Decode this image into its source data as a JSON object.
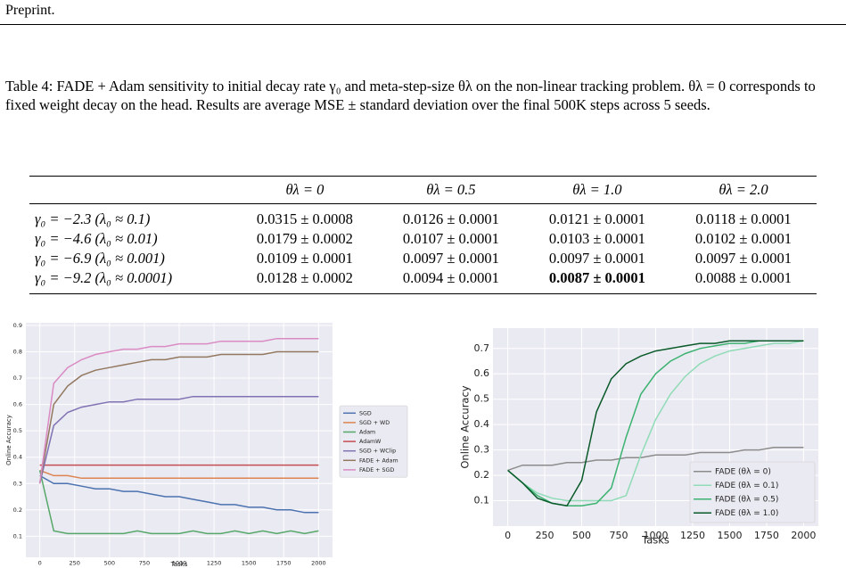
{
  "header": {
    "title": "Preprint."
  },
  "caption": "Table 4: FADE + Adam sensitivity to initial decay rate γ₀ and meta-step-size θλ on the non-linear tracking problem. θλ = 0 corresponds to fixed weight decay on the head. Results are average MSE ± standard deviation over the final 500K steps across 5 seeds.",
  "table": {
    "columns": [
      "θλ = 0",
      "θλ = 0.5",
      "θλ = 1.0",
      "θλ = 2.0"
    ],
    "rows": [
      {
        "label": "γ₀ = −2.3 (λ₀ ≈ 0.1)",
        "cells": [
          "0.0315 ± 0.0008",
          "0.0126 ± 0.0001",
          "0.0121 ± 0.0001",
          "0.0118 ± 0.0001"
        ]
      },
      {
        "label": "γ₀ = −4.6 (λ₀ ≈ 0.01)",
        "cells": [
          "0.0179 ± 0.0002",
          "0.0107 ± 0.0001",
          "0.0103 ± 0.0001",
          "0.0102 ± 0.0001"
        ]
      },
      {
        "label": "γ₀ = −6.9 (λ₀ ≈ 0.001)",
        "cells": [
          "0.0109 ± 0.0001",
          "0.0097 ± 0.0001",
          "0.0097 ± 0.0001",
          "0.0097 ± 0.0001"
        ]
      },
      {
        "label": "γ₀ = −9.2 (λ₀ ≈ 0.0001)",
        "cells": [
          "0.0128 ± 0.0002",
          "0.0094 ± 0.0001",
          "0.0087 ± 0.0001",
          "0.0088 ± 0.0001"
        ]
      }
    ],
    "bold": [
      [
        3,
        2
      ]
    ]
  },
  "chart_data": [
    {
      "type": "line",
      "x_label": "Tasks",
      "y_label": "Online Accuracy",
      "x": [
        0,
        100,
        200,
        300,
        400,
        500,
        600,
        700,
        800,
        900,
        1000,
        1100,
        1200,
        1300,
        1400,
        1500,
        1600,
        1700,
        1800,
        1900,
        2000
      ],
      "xlim": [
        -100,
        2100
      ],
      "ylim": [
        0.02,
        0.91
      ],
      "xticks": [
        0,
        250,
        500,
        750,
        1000,
        1250,
        1500,
        1750,
        2000
      ],
      "yticks": [
        0.1,
        0.2,
        0.3,
        0.4,
        0.5,
        0.6,
        0.7,
        0.8,
        0.9
      ],
      "grid": true,
      "legend": "outside right",
      "series": [
        {
          "name": "SGD",
          "color": "#4c72b0",
          "values": [
            0.33,
            0.3,
            0.3,
            0.29,
            0.28,
            0.28,
            0.27,
            0.27,
            0.26,
            0.25,
            0.25,
            0.24,
            0.23,
            0.22,
            0.22,
            0.21,
            0.21,
            0.2,
            0.2,
            0.19,
            0.19
          ]
        },
        {
          "name": "SGD + WD",
          "color": "#dd8452",
          "values": [
            0.35,
            0.33,
            0.33,
            0.32,
            0.32,
            0.32,
            0.32,
            0.32,
            0.32,
            0.32,
            0.32,
            0.32,
            0.32,
            0.32,
            0.32,
            0.32,
            0.32,
            0.32,
            0.32,
            0.32,
            0.32
          ]
        },
        {
          "name": "Adam",
          "color": "#55a868",
          "values": [
            0.35,
            0.12,
            0.11,
            0.11,
            0.11,
            0.11,
            0.11,
            0.12,
            0.11,
            0.11,
            0.11,
            0.12,
            0.11,
            0.11,
            0.12,
            0.11,
            0.12,
            0.11,
            0.12,
            0.11,
            0.12
          ]
        },
        {
          "name": "AdamW",
          "color": "#c44e52",
          "values": [
            0.37,
            0.37,
            0.37,
            0.37,
            0.37,
            0.37,
            0.37,
            0.37,
            0.37,
            0.37,
            0.37,
            0.37,
            0.37,
            0.37,
            0.37,
            0.37,
            0.37,
            0.37,
            0.37,
            0.37,
            0.37
          ]
        },
        {
          "name": "SGD + WClip",
          "color": "#8172b3",
          "values": [
            0.3,
            0.52,
            0.57,
            0.59,
            0.6,
            0.61,
            0.61,
            0.62,
            0.62,
            0.62,
            0.62,
            0.63,
            0.63,
            0.63,
            0.63,
            0.63,
            0.63,
            0.63,
            0.63,
            0.63,
            0.63
          ]
        },
        {
          "name": "FADE + Adam",
          "color": "#937860",
          "values": [
            0.3,
            0.6,
            0.67,
            0.71,
            0.73,
            0.74,
            0.75,
            0.76,
            0.77,
            0.77,
            0.78,
            0.78,
            0.78,
            0.79,
            0.79,
            0.79,
            0.79,
            0.8,
            0.8,
            0.8,
            0.8
          ]
        },
        {
          "name": "FADE + SGD",
          "color": "#da8bc3",
          "values": [
            0.3,
            0.68,
            0.74,
            0.77,
            0.79,
            0.8,
            0.81,
            0.81,
            0.82,
            0.82,
            0.83,
            0.83,
            0.83,
            0.84,
            0.84,
            0.84,
            0.84,
            0.85,
            0.85,
            0.85,
            0.85
          ]
        }
      ]
    },
    {
      "type": "line",
      "x_label": "Tasks",
      "y_label": "Online Accuracy",
      "x": [
        0,
        100,
        200,
        300,
        400,
        500,
        600,
        700,
        800,
        900,
        1000,
        1100,
        1200,
        1300,
        1400,
        1500,
        1600,
        1700,
        1800,
        1900,
        2000
      ],
      "xlim": [
        -100,
        2100
      ],
      "ylim": [
        0.0,
        0.78
      ],
      "xticks": [
        0,
        250,
        500,
        750,
        1000,
        1250,
        1500,
        1750,
        2000
      ],
      "yticks": [
        0.1,
        0.2,
        0.3,
        0.4,
        0.5,
        0.6,
        0.7
      ],
      "grid": true,
      "legend": "lower right",
      "series": [
        {
          "name": "FADE (θλ = 0)",
          "color": "#8c8c8c",
          "values": [
            0.22,
            0.24,
            0.24,
            0.24,
            0.25,
            0.25,
            0.26,
            0.26,
            0.27,
            0.27,
            0.28,
            0.28,
            0.28,
            0.29,
            0.29,
            0.29,
            0.3,
            0.3,
            0.31,
            0.31,
            0.31
          ]
        },
        {
          "name": "FADE (θλ = 0.1)",
          "color": "#8fdcb6",
          "values": [
            0.22,
            0.17,
            0.13,
            0.11,
            0.1,
            0.1,
            0.1,
            0.1,
            0.12,
            0.28,
            0.42,
            0.52,
            0.59,
            0.64,
            0.67,
            0.69,
            0.7,
            0.71,
            0.72,
            0.72,
            0.73
          ]
        },
        {
          "name": "FADE (θλ = 0.5)",
          "color": "#3cb371",
          "values": [
            0.22,
            0.17,
            0.12,
            0.09,
            0.08,
            0.08,
            0.09,
            0.15,
            0.35,
            0.52,
            0.6,
            0.65,
            0.68,
            0.7,
            0.71,
            0.72,
            0.72,
            0.73,
            0.73,
            0.73,
            0.73
          ]
        },
        {
          "name": "FADE (θλ = 1.0)",
          "color": "#0b5a2a",
          "values": [
            0.22,
            0.17,
            0.11,
            0.09,
            0.08,
            0.18,
            0.45,
            0.58,
            0.64,
            0.67,
            0.69,
            0.7,
            0.71,
            0.72,
            0.72,
            0.73,
            0.73,
            0.73,
            0.73,
            0.73,
            0.73
          ]
        }
      ]
    }
  ]
}
